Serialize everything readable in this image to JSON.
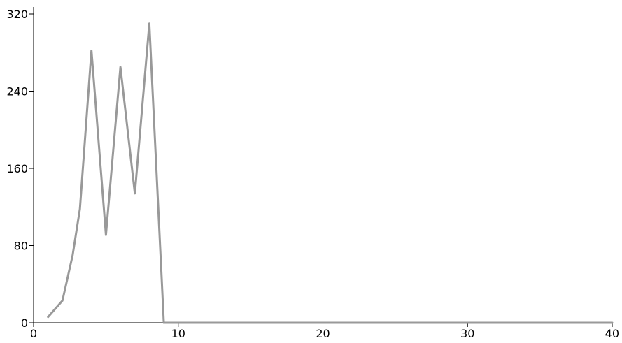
{
  "chart_data": {
    "type": "line",
    "title": "",
    "xlabel": "",
    "ylabel": "",
    "xlim": [
      0,
      40
    ],
    "ylim": [
      0,
      320
    ],
    "x_ticks": [
      0,
      10,
      20,
      30,
      40
    ],
    "y_ticks": [
      0,
      80,
      160,
      240,
      320
    ],
    "grid": false,
    "legend": "none",
    "series": [
      {
        "color": "#999999",
        "x": [
          1,
          2,
          2.7,
          3.2,
          4,
          5,
          6,
          7,
          8,
          9,
          10,
          15,
          20,
          25,
          30,
          35,
          40
        ],
        "y": [
          6,
          23,
          70,
          118,
          282,
          91,
          265,
          134,
          310,
          0,
          0,
          0,
          0,
          0,
          0,
          0,
          0
        ]
      }
    ]
  }
}
